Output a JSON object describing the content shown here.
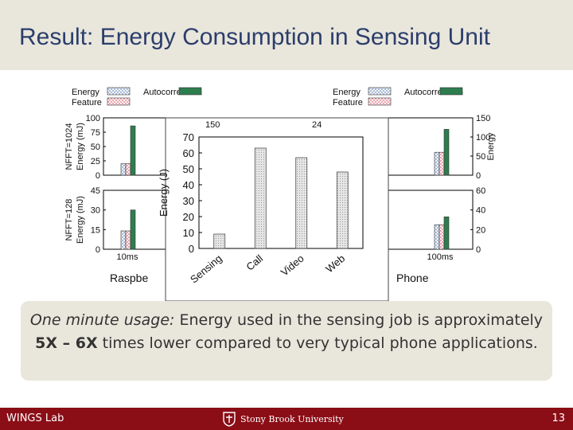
{
  "slide": {
    "title": "Result: Energy Consumption in Sensing Unit",
    "callout": {
      "italic_lead": "One minute usage:",
      "text_1": " Energy used in the sensing job is approximately ",
      "bold": "5X – 6X",
      "text_2": " times lower compared to very typical phone applications."
    },
    "footer": {
      "lab": "WINGS Lab",
      "university": "Stony Brook University",
      "page": "13"
    }
  },
  "colors": {
    "energy": "#b9c9e0",
    "feature": "#f3bfc6",
    "autocorrelation": "#2e7d4f",
    "title": "#2b3e6b",
    "footer_bg": "#8b0d16",
    "band_bg": "#e9e6dc"
  },
  "chart_data": [
    {
      "type": "bar",
      "panel": "left-top",
      "legend": [
        "Energy",
        "Autocorrelation",
        "Feature"
      ],
      "ylabel": "Energy (mJ)",
      "row_label": "NFFT=1024",
      "ylim": [
        0,
        100
      ],
      "yticks": [
        "0",
        "25",
        "50",
        "75",
        "100"
      ],
      "series": [
        {
          "name": "Energy",
          "values": [
            20
          ]
        },
        {
          "name": "Feature",
          "values": [
            20
          ]
        },
        {
          "name": "Autocorrelation",
          "values": [
            86
          ]
        }
      ]
    },
    {
      "type": "bar",
      "panel": "left-bottom",
      "ylabel": "Energy (mJ)",
      "row_label": "NFFT=128",
      "ylim": [
        0,
        45
      ],
      "yticks": [
        "0",
        "15",
        "30",
        "45"
      ],
      "categories": [
        "10ms"
      ],
      "series": [
        {
          "name": "Energy",
          "values": [
            14
          ]
        },
        {
          "name": "Feature",
          "values": [
            14
          ]
        },
        {
          "name": "Autocorrelation",
          "values": [
            30
          ]
        }
      ],
      "caption_fragment": "Raspbe"
    },
    {
      "type": "bar",
      "panel": "center-overlay",
      "ylabel": "Energy (J)",
      "ylim": [
        0,
        70
      ],
      "yticks": [
        "0",
        "10",
        "20",
        "30",
        "40",
        "50",
        "60",
        "70"
      ],
      "categories": [
        "Sensing",
        "Call",
        "Video",
        "Web"
      ],
      "values": [
        9,
        63,
        57,
        48
      ],
      "background_fragments": [
        "150",
        "24"
      ]
    },
    {
      "type": "bar",
      "panel": "right-top",
      "legend": [
        "Energy",
        "Autocorrelation",
        "Feature"
      ],
      "legend_top_value": "150",
      "ylabel": "Energy",
      "ylim": [
        0,
        150
      ],
      "yticks": [
        "0",
        "50",
        "100",
        "150"
      ],
      "series": [
        {
          "name": "Energy",
          "values": [
            60
          ]
        },
        {
          "name": "Feature",
          "values": [
            60
          ]
        },
        {
          "name": "Autocorrelation",
          "values": [
            120
          ]
        }
      ]
    },
    {
      "type": "bar",
      "panel": "right-bottom",
      "ylim": [
        0,
        60
      ],
      "yticks": [
        "0",
        "20",
        "40",
        "60"
      ],
      "categories": [
        "100ms"
      ],
      "left_fragment": "s",
      "series": [
        {
          "name": "Energy",
          "values": [
            25
          ]
        },
        {
          "name": "Feature",
          "values": [
            25
          ]
        },
        {
          "name": "Autocorrelation",
          "values": [
            33
          ]
        }
      ],
      "caption_fragment": "Phone"
    }
  ]
}
